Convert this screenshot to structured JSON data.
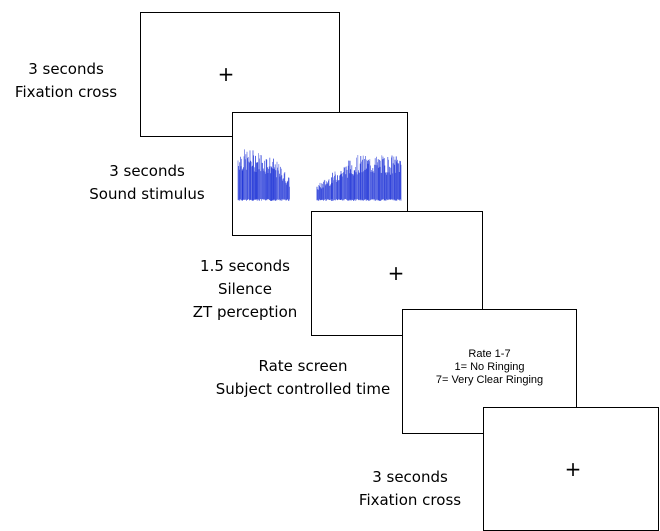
{
  "steps": [
    {
      "duration": "3 seconds",
      "caption": "Fixation cross",
      "content": "+"
    },
    {
      "duration": "3 seconds",
      "caption": "Sound stimulus"
    },
    {
      "duration": "1.5 seconds",
      "caption_lines": [
        "Silence",
        "ZT perception"
      ],
      "content": "+"
    },
    {
      "duration": "Rate screen",
      "caption": "Subject controlled time",
      "content_lines": [
        "Rate 1-7",
        "1= No Ringing",
        "7= Very Clear Ringing"
      ]
    },
    {
      "duration": "3 seconds",
      "caption": "Fixation cross",
      "content": "+"
    }
  ],
  "colors": {
    "waveform": "#1a2fd6",
    "border": "#000000"
  }
}
